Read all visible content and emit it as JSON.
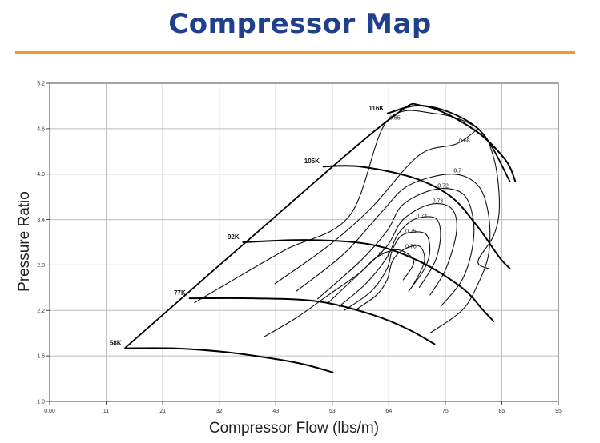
{
  "title": "Compressor Map",
  "chart_data": {
    "type": "line",
    "title": "Compressor Map",
    "xlabel": "Compressor Flow (lbs/m)",
    "ylabel": "Pressure Ratio",
    "xlim": [
      0,
      95
    ],
    "ylim": [
      1.0,
      5.2
    ],
    "x_ticks": [
      "0.00",
      "11",
      "21",
      "32",
      "43",
      "53",
      "64",
      "75",
      "85",
      "95"
    ],
    "y_ticks": [
      "1.0",
      "1.6",
      "2.2",
      "2.8",
      "3.4",
      "4.0",
      "4.6",
      "5.2"
    ],
    "grid": true,
    "surge_line": [
      [
        14,
        1.7
      ],
      [
        35,
        3.0
      ],
      [
        63,
        4.7
      ],
      [
        70,
        4.9
      ],
      [
        80,
        4.6
      ],
      [
        86,
        3.9
      ]
    ],
    "speed_lines": [
      {
        "name": "58K",
        "points": [
          [
            14,
            1.7
          ],
          [
            23,
            1.7
          ],
          [
            33,
            1.65
          ],
          [
            43,
            1.55
          ],
          [
            48,
            1.48
          ],
          [
            53,
            1.38
          ]
        ]
      },
      {
        "name": "77K",
        "points": [
          [
            26,
            2.36
          ],
          [
            38,
            2.36
          ],
          [
            50,
            2.32
          ],
          [
            60,
            2.15
          ],
          [
            67,
            1.95
          ],
          [
            72,
            1.75
          ]
        ]
      },
      {
        "name": "92K",
        "points": [
          [
            36,
            3.1
          ],
          [
            48,
            3.13
          ],
          [
            60,
            3.07
          ],
          [
            69,
            2.85
          ],
          [
            77,
            2.5
          ],
          [
            81,
            2.2
          ],
          [
            83,
            2.05
          ]
        ]
      },
      {
        "name": "105K",
        "points": [
          [
            51,
            4.1
          ],
          [
            58,
            4.1
          ],
          [
            68,
            3.95
          ],
          [
            75,
            3.7
          ],
          [
            80,
            3.3
          ],
          [
            84,
            2.9
          ],
          [
            86,
            2.75
          ]
        ]
      },
      {
        "name": "116K",
        "points": [
          [
            63,
            4.8
          ],
          [
            70,
            4.9
          ],
          [
            79,
            4.6
          ],
          [
            85,
            4.2
          ],
          [
            87,
            3.9
          ]
        ]
      }
    ],
    "efficiency_islands": [
      {
        "name": "0.65",
        "points": [
          [
            27,
            2.3
          ],
          [
            33,
            2.55
          ],
          [
            44,
            3.0
          ],
          [
            56,
            3.45
          ],
          [
            63,
            4.7
          ],
          [
            72,
            4.8
          ],
          [
            80,
            4.6
          ],
          [
            83,
            4.2
          ],
          [
            84,
            3.6
          ],
          [
            83,
            3.2
          ],
          [
            80,
            2.85
          ],
          [
            82,
            2.75
          ]
        ]
      },
      {
        "name": "0.68",
        "points": [
          [
            42,
            2.55
          ],
          [
            52,
            3.05
          ],
          [
            60,
            3.55
          ],
          [
            69,
            4.25
          ],
          [
            76,
            4.4
          ],
          [
            80,
            4.6
          ]
        ]
      },
      {
        "name": "0.7",
        "points": [
          [
            46,
            2.45
          ],
          [
            55,
            2.95
          ],
          [
            62,
            3.5
          ],
          [
            67,
            3.85
          ],
          [
            75,
            4.0
          ],
          [
            80,
            3.85
          ],
          [
            82,
            3.45
          ],
          [
            82,
            2.95
          ],
          [
            80,
            2.55
          ],
          [
            77,
            2.2
          ],
          [
            71,
            1.9
          ]
        ]
      },
      {
        "name": "0.72",
        "points": [
          [
            50,
            2.35
          ],
          [
            58,
            2.85
          ],
          [
            63,
            3.25
          ],
          [
            66,
            3.6
          ],
          [
            72,
            3.8
          ],
          [
            77,
            3.75
          ],
          [
            79,
            3.45
          ],
          [
            79,
            3.05
          ],
          [
            77,
            2.6
          ],
          [
            73,
            2.25
          ]
        ]
      },
      {
        "name": "0.73",
        "points": [
          [
            52,
            2.3
          ],
          [
            58,
            2.7
          ],
          [
            63,
            3.05
          ],
          [
            66,
            3.4
          ],
          [
            71,
            3.6
          ],
          [
            75,
            3.55
          ],
          [
            76,
            3.25
          ],
          [
            74,
            2.75
          ],
          [
            71,
            2.4
          ]
        ]
      },
      {
        "name": "0.74",
        "points": [
          [
            54,
            2.25
          ],
          [
            59,
            2.55
          ],
          [
            63,
            2.9
          ],
          [
            65,
            3.2
          ],
          [
            68,
            3.4
          ],
          [
            72,
            3.42
          ],
          [
            73,
            3.2
          ],
          [
            72,
            2.85
          ],
          [
            69,
            2.5
          ]
        ]
      },
      {
        "name": "0.75",
        "points": [
          [
            55,
            2.2
          ],
          [
            60,
            2.45
          ],
          [
            63,
            2.75
          ],
          [
            64,
            3.0
          ],
          [
            66,
            3.2
          ],
          [
            70,
            3.22
          ],
          [
            71,
            3.0
          ],
          [
            70,
            2.75
          ],
          [
            67,
            2.45
          ]
        ]
      },
      {
        "name": "0.76",
        "points": [
          [
            57,
            2.2
          ],
          [
            61,
            2.4
          ],
          [
            63,
            2.6
          ],
          [
            64,
            2.85
          ],
          [
            66,
            3.0
          ],
          [
            69,
            3.05
          ],
          [
            70,
            2.85
          ],
          [
            68,
            2.55
          ]
        ]
      },
      {
        "name": "0.77",
        "points": [
          [
            40,
            1.85
          ],
          [
            46,
            2.1
          ],
          [
            52,
            2.4
          ],
          [
            58,
            2.7
          ],
          [
            61,
            2.9
          ],
          [
            65,
            3.0
          ],
          [
            68,
            2.85
          ],
          [
            66,
            2.6
          ]
        ]
      }
    ]
  }
}
